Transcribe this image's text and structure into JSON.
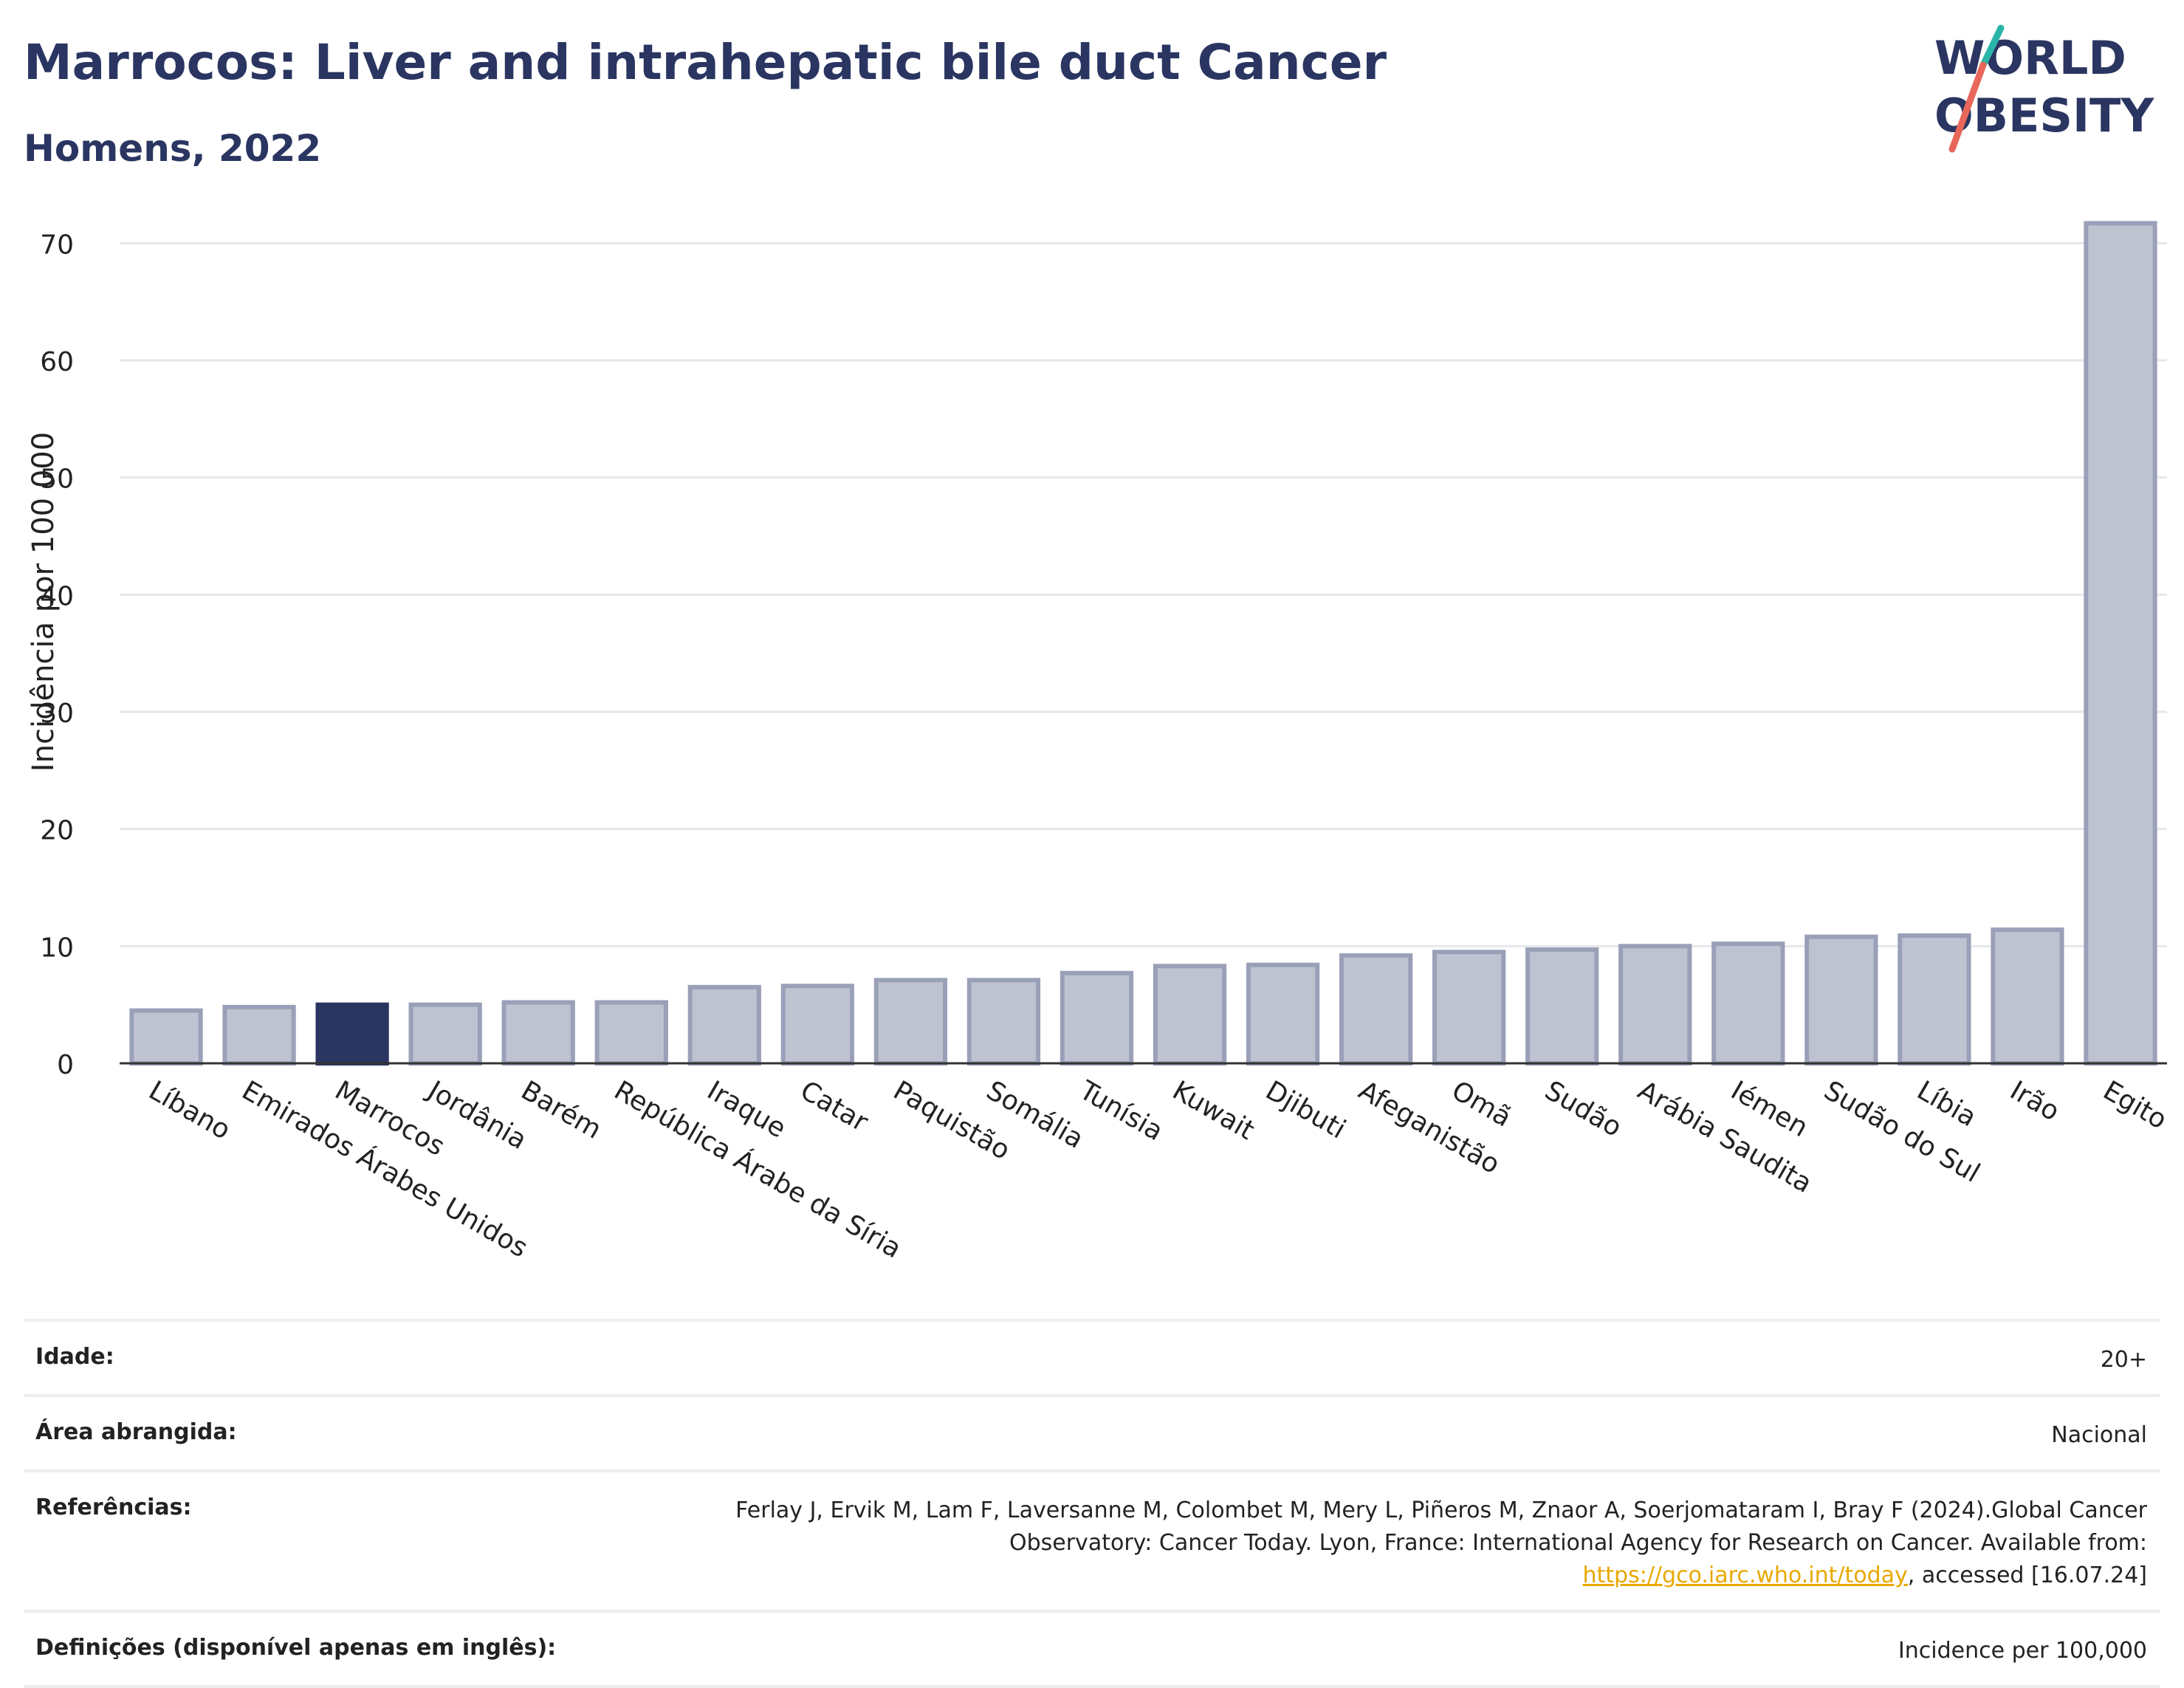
{
  "header": {
    "title": "Marrocos: Liver and intrahepatic bile duct Cancer",
    "subtitle": "Homens, 2022"
  },
  "logo": {
    "line1": "WORLD",
    "line2": "OBESITY",
    "colors": {
      "text": "#2a3561",
      "accent_teal": "#2bb5a8",
      "accent_red": "#e8665a"
    }
  },
  "chart_data": {
    "type": "bar",
    "title": "Marrocos: Liver and intrahepatic bile duct Cancer",
    "subtitle": "Homens, 2022",
    "xlabel": "",
    "ylabel": "Incidência por 100 000",
    "ylim": [
      0,
      75
    ],
    "yticks": [
      0,
      10,
      20,
      30,
      40,
      50,
      60,
      70
    ],
    "grid": true,
    "highlight": "Marrocos",
    "colors": {
      "bar": "#bfc3d1",
      "bar_border": "#9aa0b8",
      "highlight": "#2a3561"
    },
    "categories": [
      "Líbano",
      "Emirados Árabes Unidos",
      "Marrocos",
      "Jordânia",
      "Barém",
      "República Árabe da Síria",
      "Iraque",
      "Catar",
      "Paquistão",
      "Somália",
      "Tunísia",
      "Kuwait",
      "Djibuti",
      "Afeganistão",
      "Omã",
      "Sudão",
      "Arábia Saudita",
      "Iémen",
      "Sudão do Sul",
      "Líbia",
      "Irão",
      "Egito"
    ],
    "values": [
      4.5,
      4.8,
      5.0,
      5.0,
      5.2,
      5.2,
      6.5,
      6.6,
      7.1,
      7.1,
      7.7,
      8.3,
      8.4,
      9.2,
      9.5,
      9.7,
      10.0,
      10.2,
      10.8,
      10.9,
      11.4,
      71.7
    ]
  },
  "info": {
    "age_label": "Idade:",
    "age_value": "20+",
    "area_label": "Área abrangida:",
    "area_value": "Nacional",
    "ref_label": "Referências:",
    "ref_text_before": "Ferlay J, Ervik M, Lam F, Laversanne M, Colombet M, Mery L, Piñeros M, Znaor A, Soerjomataram I, Bray F (2024).Global Cancer Observatory: Cancer Today. Lyon, France: International Agency for Research on Cancer. Available from: ",
    "ref_link": "https://gco.iarc.who.int/today",
    "ref_text_after": ", accessed [16.07.24]",
    "def_label": "Definições (disponível apenas em inglês):",
    "def_value": "Incidence per 100,000"
  }
}
